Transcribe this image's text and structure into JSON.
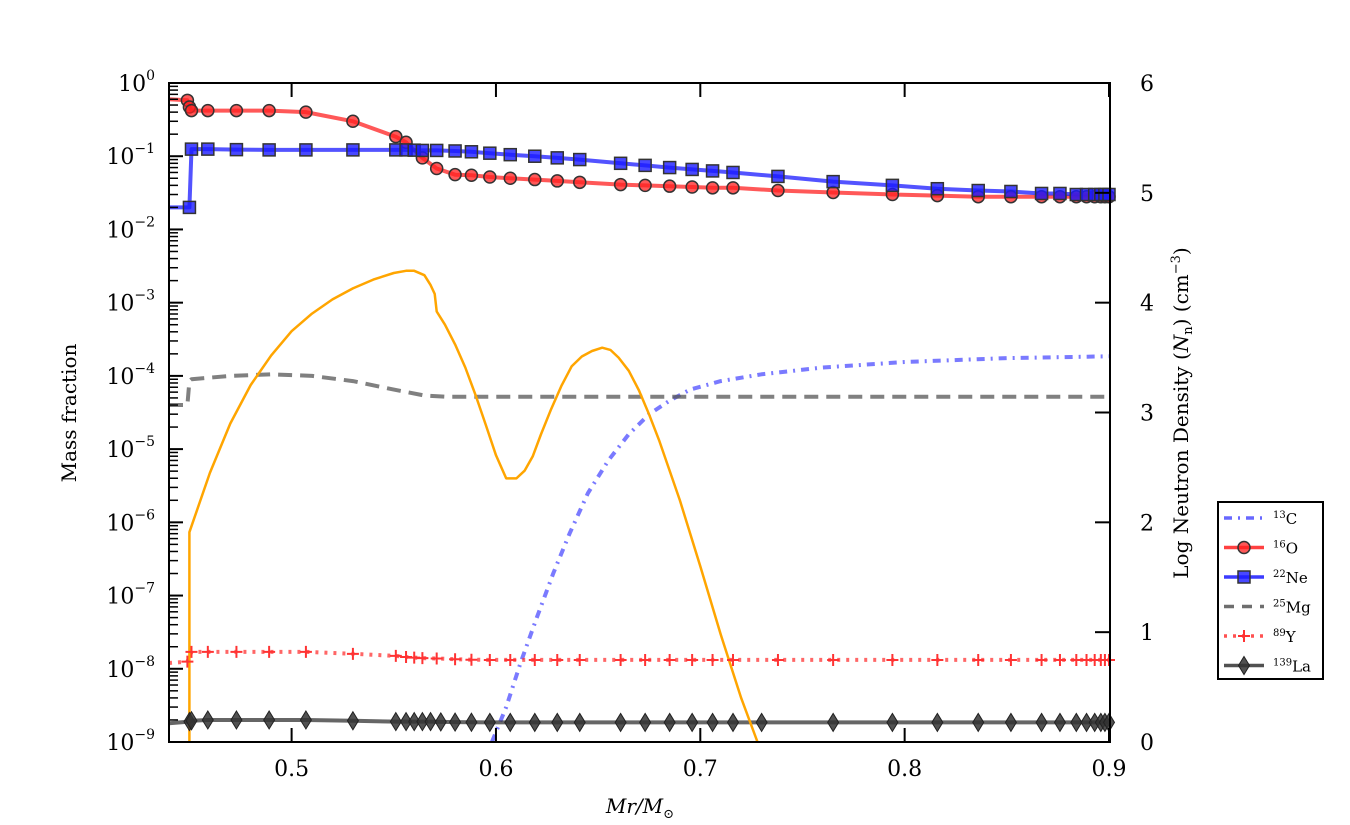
{
  "chart_data": {
    "type": "line",
    "xlabel": "Mr/M⊙",
    "ylabel_left": "Mass fraction",
    "ylabel_right": "Log Neutron Density (Nₙ) (cm⁻³)",
    "ylabel_right_parts": {
      "pre": "Log Neutron Density (",
      "var": "N",
      "sub": "n",
      "mid": ") (cm",
      "sup": "−3",
      "post": ")"
    },
    "xlabel_parts": {
      "main": "Mr/M",
      "sub": "⊙"
    },
    "xlim": [
      0.44,
      0.9
    ],
    "ylim_left": [
      1e-09,
      1
    ],
    "ylim_right": [
      0,
      6
    ],
    "yscale_left": "log",
    "grid": false,
    "legend_position": "outside-right",
    "x_ticks": [
      "0.5",
      "0.6",
      "0.7",
      "0.8",
      "0.9"
    ],
    "x_tick_values": [
      0.5,
      0.6,
      0.7,
      0.8,
      0.9
    ],
    "y_left_ticks": [
      {
        "base": "10",
        "exp": "0",
        "value": 0
      },
      {
        "base": "10",
        "exp": "−1",
        "value": -1
      },
      {
        "base": "10",
        "exp": "−2",
        "value": -2
      },
      {
        "base": "10",
        "exp": "−3",
        "value": -3
      },
      {
        "base": "10",
        "exp": "−4",
        "value": -4
      },
      {
        "base": "10",
        "exp": "−5",
        "value": -5
      },
      {
        "base": "10",
        "exp": "−6",
        "value": -6
      },
      {
        "base": "10",
        "exp": "−7",
        "value": -7
      },
      {
        "base": "10",
        "exp": "−8",
        "value": -8
      },
      {
        "base": "10",
        "exp": "−9",
        "value": -9
      }
    ],
    "y_right_ticks": [
      "0",
      "1",
      "2",
      "3",
      "4",
      "5",
      "6"
    ],
    "series": [
      {
        "name": "13C",
        "label_sup": "13",
        "label_base": "C",
        "color": "#4d4dff",
        "style": "dashdot",
        "marker": "none",
        "axis": "left",
        "x": [
          0.598,
          0.605,
          0.612,
          0.62,
          0.628,
          0.636,
          0.645,
          0.655,
          0.665,
          0.675,
          0.685,
          0.695,
          0.71,
          0.73,
          0.76,
          0.8,
          0.85,
          0.9
        ],
        "y": [
          1e-09,
          3e-09,
          1.2e-08,
          5e-08,
          2e-07,
          7e-07,
          2.5e-06,
          7e-06,
          1.6e-05,
          3e-05,
          4.6e-05,
          6.5e-05,
          8.5e-05,
          0.000105,
          0.00013,
          0.000155,
          0.000175,
          0.000185
        ]
      },
      {
        "name": "16O",
        "label_sup": "16",
        "label_base": "O",
        "color": "#ff2020",
        "style": "solid",
        "marker": "circle",
        "axis": "left",
        "x": [
          0.44,
          0.449,
          0.45,
          0.451,
          0.459,
          0.473,
          0.489,
          0.507,
          0.53,
          0.551,
          0.556,
          0.564,
          0.571,
          0.58,
          0.588,
          0.597,
          0.607,
          0.619,
          0.63,
          0.641,
          0.661,
          0.673,
          0.685,
          0.696,
          0.706,
          0.716,
          0.738,
          0.765,
          0.794,
          0.816,
          0.836,
          0.852,
          0.867,
          0.876,
          0.884,
          0.889,
          0.893,
          0.896,
          0.898,
          0.9
        ],
        "y": [
          0.6,
          0.58,
          0.47,
          0.42,
          0.42,
          0.42,
          0.42,
          0.4,
          0.3,
          0.185,
          0.155,
          0.095,
          0.068,
          0.056,
          0.055,
          0.052,
          0.05,
          0.048,
          0.046,
          0.044,
          0.041,
          0.04,
          0.039,
          0.038,
          0.037,
          0.037,
          0.034,
          0.032,
          0.03,
          0.029,
          0.028,
          0.028,
          0.028,
          0.028,
          0.028,
          0.028,
          0.028,
          0.028,
          0.028,
          0.028
        ]
      },
      {
        "name": "22Ne",
        "label_sup": "22",
        "label_base": "Ne",
        "color": "#1a1aff",
        "style": "solid",
        "marker": "square",
        "axis": "left",
        "x": [
          0.44,
          0.45,
          0.451,
          0.459,
          0.473,
          0.489,
          0.507,
          0.53,
          0.551,
          0.556,
          0.56,
          0.564,
          0.571,
          0.58,
          0.588,
          0.597,
          0.607,
          0.619,
          0.63,
          0.641,
          0.661,
          0.673,
          0.685,
          0.696,
          0.706,
          0.716,
          0.738,
          0.765,
          0.794,
          0.816,
          0.836,
          0.852,
          0.867,
          0.876,
          0.884,
          0.889,
          0.893,
          0.896,
          0.898,
          0.9
        ],
        "y": [
          0.02,
          0.02,
          0.125,
          0.125,
          0.123,
          0.122,
          0.122,
          0.122,
          0.122,
          0.122,
          0.121,
          0.12,
          0.12,
          0.118,
          0.115,
          0.11,
          0.105,
          0.1,
          0.095,
          0.09,
          0.08,
          0.075,
          0.07,
          0.066,
          0.063,
          0.06,
          0.053,
          0.045,
          0.04,
          0.036,
          0.034,
          0.033,
          0.031,
          0.031,
          0.03,
          0.03,
          0.03,
          0.03,
          0.03,
          0.03
        ]
      },
      {
        "name": "25Mg",
        "label_sup": "25",
        "label_base": "Mg",
        "color": "#555555",
        "style": "dashed",
        "marker": "none",
        "axis": "left",
        "x": [
          0.44,
          0.449,
          0.45,
          0.451,
          0.47,
          0.49,
          0.51,
          0.53,
          0.55,
          0.565,
          0.575,
          0.6,
          0.7,
          0.8,
          0.9
        ],
        "y": [
          4e-05,
          4e-05,
          8.5e-05,
          9e-05,
          0.0001,
          0.000105,
          0.0001,
          8.5e-05,
          6.5e-05,
          5.4e-05,
          5.2e-05,
          5.2e-05,
          5.2e-05,
          5.2e-05,
          5.2e-05
        ]
      },
      {
        "name": "89Y",
        "label_sup": "89",
        "label_base": "Y",
        "color": "#ff3333",
        "style": "dotted",
        "marker": "plus",
        "axis": "left",
        "x": [
          0.44,
          0.449,
          0.451,
          0.459,
          0.473,
          0.489,
          0.507,
          0.53,
          0.551,
          0.556,
          0.56,
          0.564,
          0.571,
          0.58,
          0.588,
          0.597,
          0.607,
          0.619,
          0.63,
          0.641,
          0.661,
          0.673,
          0.685,
          0.696,
          0.706,
          0.716,
          0.738,
          0.765,
          0.794,
          0.816,
          0.836,
          0.852,
          0.867,
          0.876,
          0.884,
          0.889,
          0.893,
          0.896,
          0.898,
          0.9
        ],
        "y": [
          1.2e-08,
          1.25e-08,
          1.7e-08,
          1.7e-08,
          1.7e-08,
          1.7e-08,
          1.7e-08,
          1.6e-08,
          1.5e-08,
          1.45e-08,
          1.42e-08,
          1.4e-08,
          1.38e-08,
          1.35e-08,
          1.33e-08,
          1.32e-08,
          1.32e-08,
          1.32e-08,
          1.32e-08,
          1.32e-08,
          1.32e-08,
          1.32e-08,
          1.32e-08,
          1.32e-08,
          1.32e-08,
          1.32e-08,
          1.32e-08,
          1.32e-08,
          1.32e-08,
          1.32e-08,
          1.32e-08,
          1.32e-08,
          1.32e-08,
          1.32e-08,
          1.32e-08,
          1.32e-08,
          1.32e-08,
          1.32e-08,
          1.32e-08,
          1.32e-08
        ]
      },
      {
        "name": "139La",
        "label_sup": "139",
        "label_base": "La",
        "color": "#333333",
        "style": "solid",
        "marker": "diamond",
        "axis": "left",
        "x": [
          0.44,
          0.45,
          0.451,
          0.459,
          0.473,
          0.489,
          0.507,
          0.53,
          0.551,
          0.556,
          0.56,
          0.564,
          0.568,
          0.573,
          0.58,
          0.588,
          0.597,
          0.607,
          0.619,
          0.63,
          0.641,
          0.661,
          0.673,
          0.685,
          0.696,
          0.706,
          0.716,
          0.73,
          0.765,
          0.794,
          0.816,
          0.836,
          0.852,
          0.867,
          0.876,
          0.884,
          0.889,
          0.893,
          0.896,
          0.898,
          0.9
        ],
        "y": [
          1.8e-09,
          1.9e-09,
          1.95e-09,
          2e-09,
          2e-09,
          2e-09,
          2e-09,
          1.95e-09,
          1.9e-09,
          1.9e-09,
          1.9e-09,
          1.9e-09,
          1.9e-09,
          1.88e-09,
          1.87e-09,
          1.86e-09,
          1.85e-09,
          1.85e-09,
          1.85e-09,
          1.85e-09,
          1.85e-09,
          1.85e-09,
          1.85e-09,
          1.85e-09,
          1.85e-09,
          1.85e-09,
          1.85e-09,
          1.85e-09,
          1.85e-09,
          1.85e-09,
          1.85e-09,
          1.85e-09,
          1.85e-09,
          1.85e-09,
          1.85e-09,
          1.85e-09,
          1.85e-09,
          1.85e-09,
          1.85e-09,
          1.85e-09,
          1.85e-09
        ]
      },
      {
        "name": "Log Neutron Density",
        "color": "#ffa500",
        "style": "solid",
        "marker": "none",
        "axis": "right",
        "in_legend": false,
        "x": [
          0.45,
          0.45,
          0.46,
          0.47,
          0.48,
          0.49,
          0.5,
          0.51,
          0.52,
          0.53,
          0.54,
          0.55,
          0.556,
          0.56,
          0.565,
          0.568,
          0.57,
          0.571,
          0.575,
          0.58,
          0.585,
          0.59,
          0.595,
          0.6,
          0.605,
          0.61,
          0.614,
          0.618,
          0.622,
          0.627,
          0.632,
          0.637,
          0.642,
          0.647,
          0.652,
          0.656,
          0.66,
          0.665,
          0.67,
          0.675,
          0.68,
          0.69,
          0.7,
          0.71,
          0.72,
          0.728
        ],
        "y": [
          0,
          1.91,
          2.45,
          2.9,
          3.25,
          3.52,
          3.74,
          3.9,
          4.03,
          4.13,
          4.21,
          4.27,
          4.29,
          4.29,
          4.25,
          4.16,
          4.08,
          3.92,
          3.8,
          3.62,
          3.41,
          3.16,
          2.89,
          2.61,
          2.4,
          2.4,
          2.47,
          2.6,
          2.8,
          3.03,
          3.24,
          3.42,
          3.51,
          3.56,
          3.59,
          3.57,
          3.5,
          3.38,
          3.2,
          2.98,
          2.74,
          2.2,
          1.6,
          0.98,
          0.4,
          0
        ]
      }
    ]
  }
}
